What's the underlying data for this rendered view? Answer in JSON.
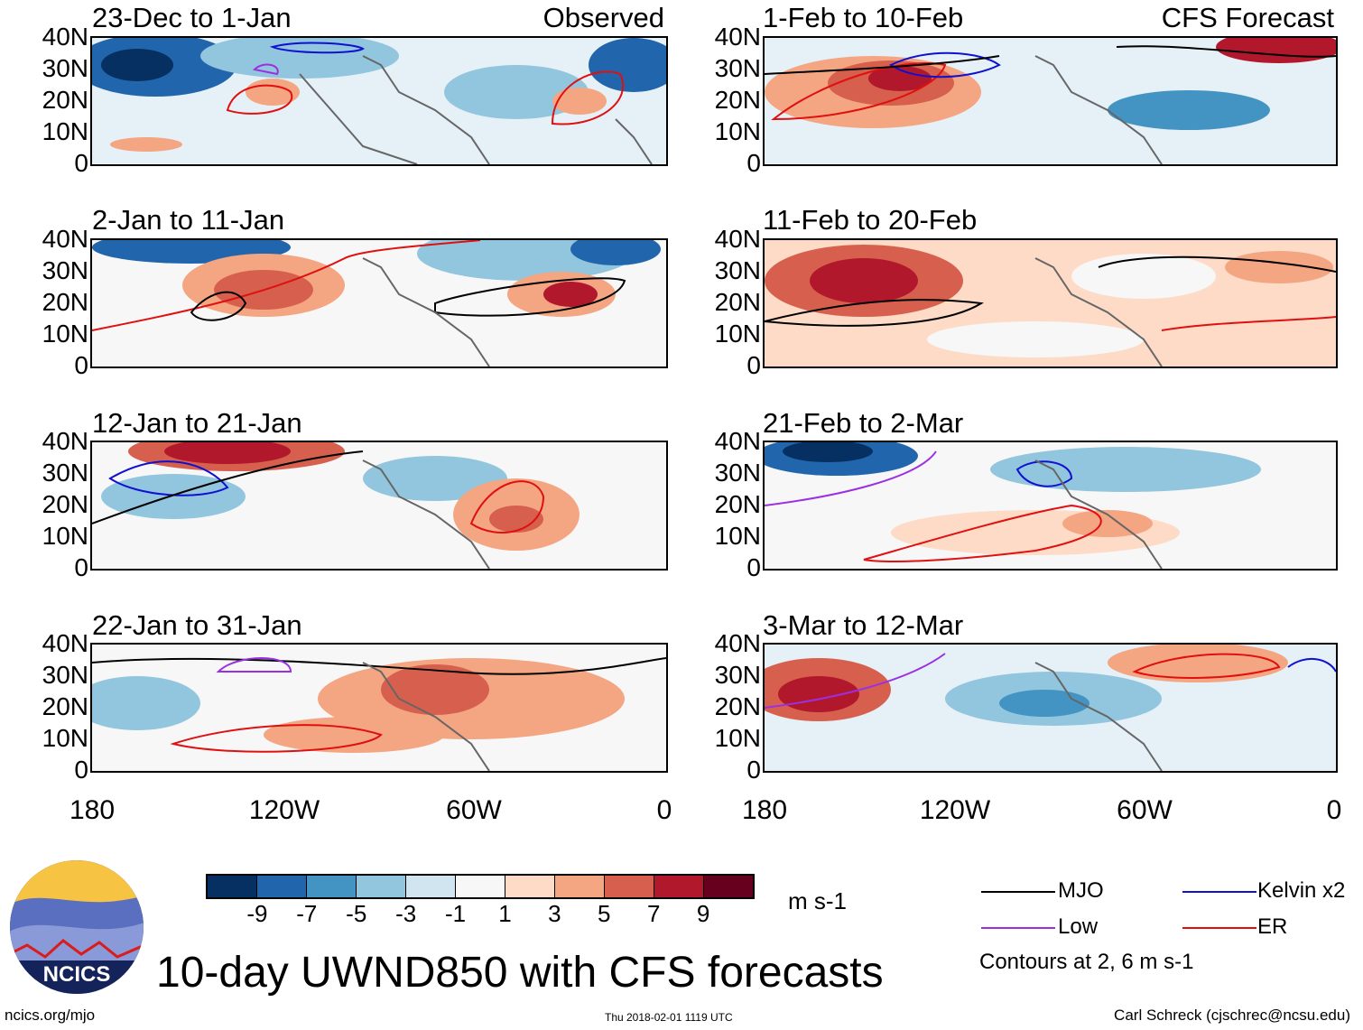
{
  "panels_left": [
    {
      "title": "23-Dec to 1-Jan",
      "tag": "Observed"
    },
    {
      "title": "2-Jan to 11-Jan",
      "tag": ""
    },
    {
      "title": "12-Jan to 21-Jan",
      "tag": ""
    },
    {
      "title": "22-Jan to 31-Jan",
      "tag": ""
    }
  ],
  "panels_right": [
    {
      "title": "1-Feb to 10-Feb",
      "tag": "CFS Forecast"
    },
    {
      "title": "11-Feb to 20-Feb",
      "tag": ""
    },
    {
      "title": "21-Feb to 2-Mar",
      "tag": ""
    },
    {
      "title": "3-Mar to 12-Mar",
      "tag": ""
    }
  ],
  "lat_labels": [
    "40N",
    "30N",
    "20N",
    "10N",
    "0"
  ],
  "lon_labels": [
    "180",
    "120W",
    "60W",
    "0"
  ],
  "colorbar": {
    "colors": [
      "#053061",
      "#2166ac",
      "#4393c3",
      "#92c5de",
      "#d1e5f0",
      "#f7f7f7",
      "#fddbc7",
      "#f4a582",
      "#d6604d",
      "#b2182b",
      "#67001f"
    ],
    "labels": [
      "-9",
      "-7",
      "-5",
      "-3",
      "-1",
      "1",
      "3",
      "5",
      "7",
      "9"
    ],
    "units": "m s-1"
  },
  "legend": [
    {
      "label": "MJO",
      "color": "#000000"
    },
    {
      "label": "Kelvin x2",
      "color": "#1010d0"
    },
    {
      "label": "Low",
      "color": "#9b30e0"
    },
    {
      "label": "ER",
      "color": "#e01010"
    }
  ],
  "contour_note": "Contours at 2, 6 m s-1",
  "main_title": "10-day UWND850 with CFS forecasts",
  "logo_text": "NCICS",
  "footer": {
    "left": "ncics.org/mjo",
    "mid": "Thu 2018-02-01 1119 UTC",
    "right": "Carl Schreck (cjschrec@ncsu.edu)"
  }
}
